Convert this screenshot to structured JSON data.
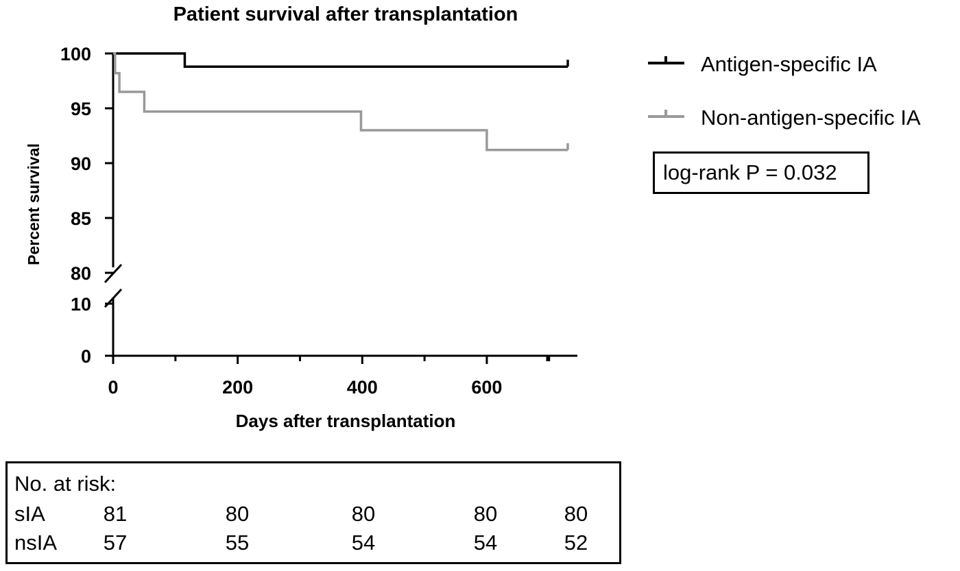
{
  "chart_data": {
    "type": "line",
    "subtype": "kaplan-meier step survival curve",
    "title": "Patient survival after transplantation",
    "xlabel": "Days after transplantation",
    "ylabel": "Percent survival",
    "xlim": [
      0,
      730
    ],
    "x_ticks": [
      0,
      200,
      400,
      600
    ],
    "x_tick_labels": [
      "0",
      "200",
      "400",
      "600"
    ],
    "y_ticks_upper": [
      80,
      85,
      90,
      95,
      100
    ],
    "y_tick_labels_upper": [
      "80",
      "85",
      "90",
      "95",
      "100"
    ],
    "y_ticks_lower": [
      0,
      10
    ],
    "y_tick_labels_lower": [
      "0",
      "10"
    ],
    "y_axis_break": [
      10,
      80
    ],
    "legend_position": "right",
    "series": [
      {
        "name": "Antigen-specific IA",
        "color": "#000000",
        "steps": [
          [
            0,
            100
          ],
          [
            115,
            98.8
          ],
          [
            730,
            98.8
          ]
        ]
      },
      {
        "name": "Non-antigen-specific IA",
        "color": "#999999",
        "steps": [
          [
            0,
            100
          ],
          [
            3,
            98.2
          ],
          [
            10,
            96.5
          ],
          [
            50,
            94.7
          ],
          [
            398,
            93.0
          ],
          [
            600,
            91.2
          ],
          [
            730,
            91.2
          ]
        ]
      }
    ],
    "annotation": "log-rank P = 0.032",
    "risk_table": {
      "header": "No. at risk:",
      "rows": [
        {
          "label": "sIA",
          "values": [
            "81",
            "80",
            "80",
            "80",
            "80"
          ]
        },
        {
          "label": "nsIA",
          "values": [
            "57",
            "55",
            "54",
            "54",
            "52"
          ]
        }
      ]
    }
  }
}
